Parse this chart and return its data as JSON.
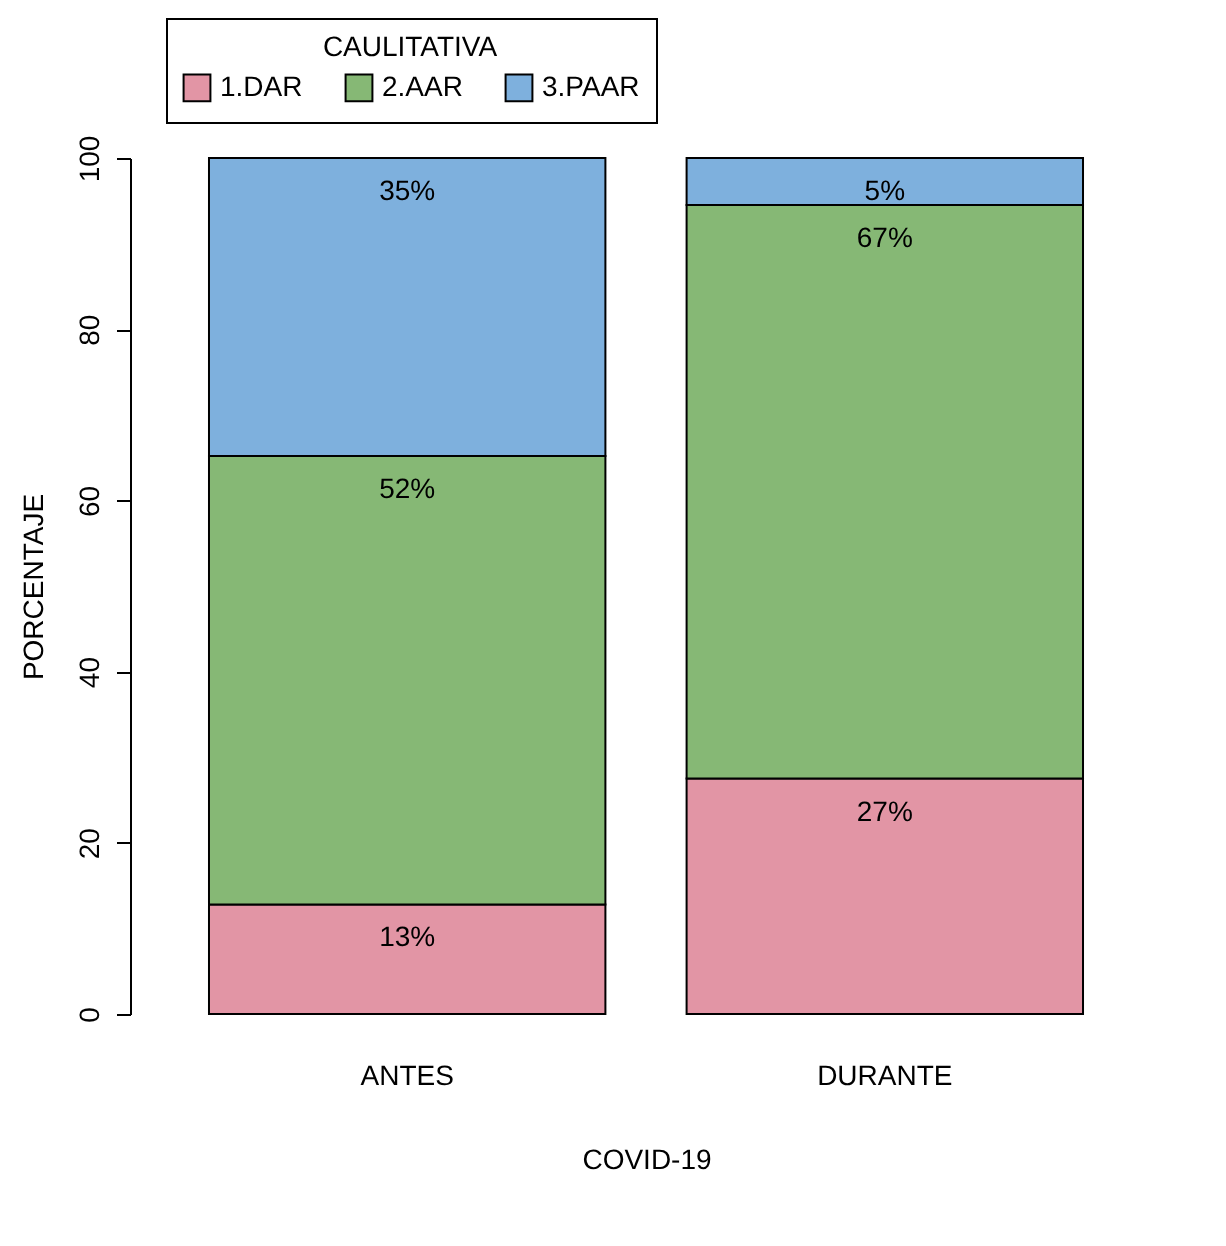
{
  "chart_data": {
    "type": "bar",
    "stacked": true,
    "xlabel": "COVID-19",
    "ylabel": "PORCENTAJE",
    "legend_title": "CAULITATIVA",
    "legend": "top",
    "categories": [
      "ANTES",
      "DURANTE"
    ],
    "series": [
      {
        "name": "1.DAR",
        "color": "#e295a5",
        "values": [
          12.8,
          27.5
        ],
        "value_labels": [
          "13%",
          "27%"
        ]
      },
      {
        "name": "2.AAR",
        "color": "#86b875",
        "values": [
          52.4,
          67
        ],
        "value_labels": [
          "52%",
          "67%"
        ]
      },
      {
        "name": "3.PAAR",
        "color": "#7eb0dd",
        "values": [
          34.8,
          5.5
        ],
        "value_labels": [
          "35%",
          "5%"
        ]
      }
    ],
    "ylim": [
      0,
      100
    ],
    "yticks": [
      0,
      20,
      40,
      60,
      80,
      100
    ]
  }
}
